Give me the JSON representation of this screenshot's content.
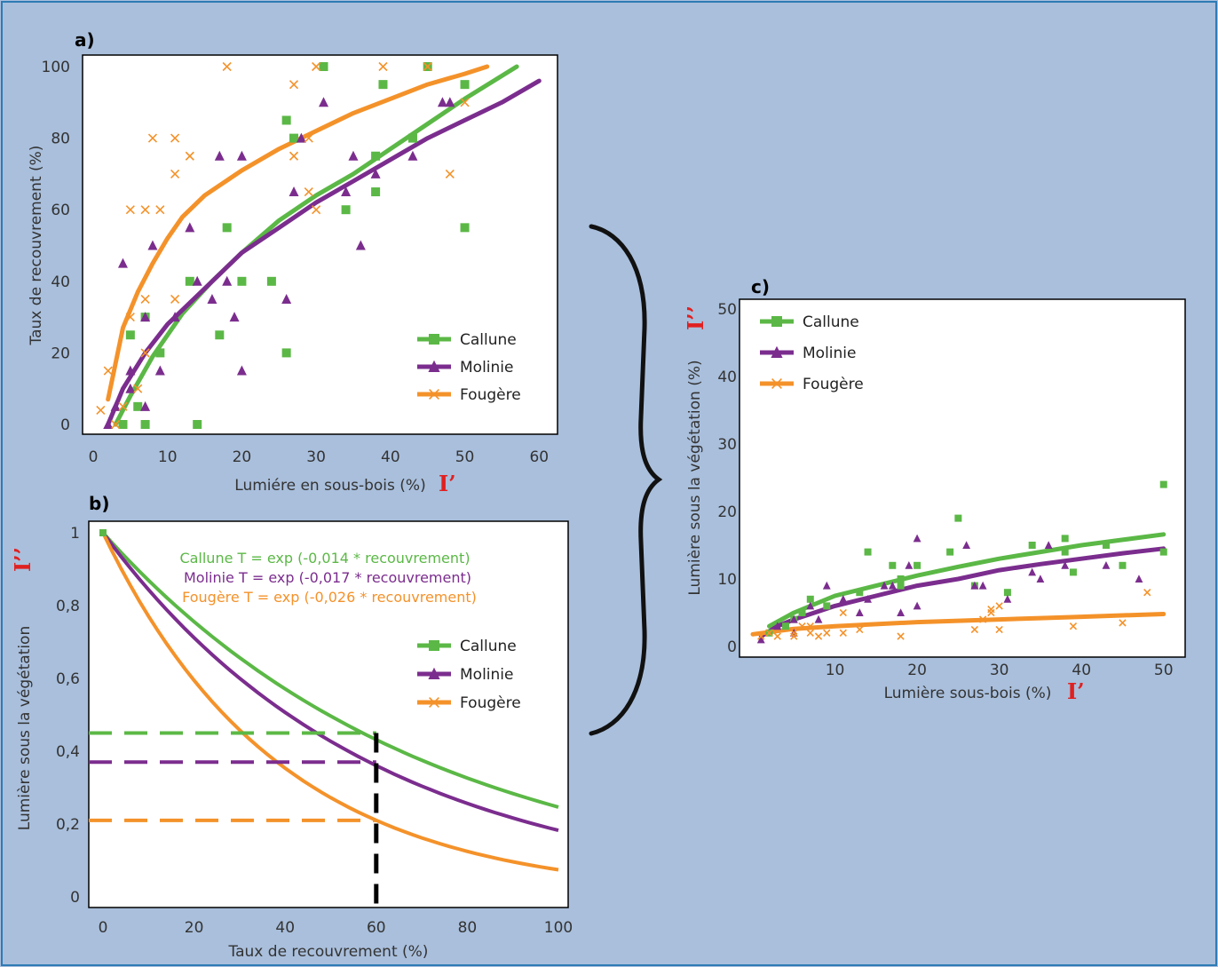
{
  "colors": {
    "callune": "#5bb846",
    "molinie": "#7b2d8e",
    "fougere": "#f4922a",
    "background": "#a9bfdc",
    "red": "#e02020"
  },
  "chart_data": [
    {
      "id": "a",
      "panel_label": "a)",
      "type": "scatter",
      "xlabel": "Lumiére en sous-bois (%)",
      "xlabel_mark": "I’",
      "ylabel": "Taux de recouvrement (%)",
      "xlim": [
        0,
        62
      ],
      "ylim": [
        0,
        100
      ],
      "xticks": [
        0,
        10,
        20,
        30,
        40,
        50,
        60
      ],
      "yticks": [
        0,
        20,
        40,
        60,
        80,
        100
      ],
      "legend_position": "bottom-right",
      "series": [
        {
          "name": "Callune",
          "marker": "square",
          "color": "#5bb846",
          "points": [
            [
              4,
              0
            ],
            [
              5,
              25
            ],
            [
              6,
              5
            ],
            [
              7,
              0
            ],
            [
              7,
              30
            ],
            [
              9,
              20
            ],
            [
              13,
              40
            ],
            [
              14,
              0
            ],
            [
              17,
              25
            ],
            [
              18,
              55
            ],
            [
              20,
              40
            ],
            [
              24,
              40
            ],
            [
              26,
              20
            ],
            [
              26,
              85
            ],
            [
              27,
              80
            ],
            [
              31,
              100
            ],
            [
              34,
              60
            ],
            [
              38,
              65
            ],
            [
              38,
              75
            ],
            [
              39,
              95
            ],
            [
              43,
              80
            ],
            [
              45,
              100
            ],
            [
              50,
              95
            ],
            [
              50,
              55
            ]
          ],
          "fit": [
            [
              3,
              0
            ],
            [
              5,
              8
            ],
            [
              8,
              19
            ],
            [
              12,
              31
            ],
            [
              16,
              40
            ],
            [
              20,
              48
            ],
            [
              25,
              57
            ],
            [
              30,
              64
            ],
            [
              35,
              70
            ],
            [
              40,
              77
            ],
            [
              45,
              84
            ],
            [
              50,
              91
            ],
            [
              57,
              100
            ]
          ]
        },
        {
          "name": "Molinie",
          "marker": "triangle",
          "color": "#7b2d8e",
          "points": [
            [
              2,
              0
            ],
            [
              3,
              5
            ],
            [
              4,
              45
            ],
            [
              5,
              10
            ],
            [
              5,
              15
            ],
            [
              7,
              5
            ],
            [
              7,
              30
            ],
            [
              8,
              50
            ],
            [
              9,
              15
            ],
            [
              11,
              30
            ],
            [
              13,
              55
            ],
            [
              14,
              40
            ],
            [
              16,
              35
            ],
            [
              17,
              75
            ],
            [
              18,
              40
            ],
            [
              19,
              30
            ],
            [
              20,
              75
            ],
            [
              20,
              15
            ],
            [
              26,
              35
            ],
            [
              27,
              65
            ],
            [
              28,
              80
            ],
            [
              31,
              90
            ],
            [
              34,
              65
            ],
            [
              35,
              75
            ],
            [
              36,
              50
            ],
            [
              38,
              70
            ],
            [
              43,
              75
            ],
            [
              47,
              90
            ],
            [
              48,
              90
            ]
          ],
          "fit": [
            [
              2,
              0
            ],
            [
              4,
              10
            ],
            [
              7,
              20
            ],
            [
              10,
              28
            ],
            [
              15,
              38
            ],
            [
              20,
              48
            ],
            [
              25,
              55
            ],
            [
              30,
              62
            ],
            [
              35,
              68
            ],
            [
              40,
              74
            ],
            [
              45,
              80
            ],
            [
              50,
              85
            ],
            [
              55,
              90
            ],
            [
              60,
              96
            ]
          ]
        },
        {
          "name": "Fougère",
          "marker": "x",
          "color": "#f4922a",
          "points": [
            [
              1,
              4
            ],
            [
              2,
              15
            ],
            [
              3,
              0
            ],
            [
              4,
              5
            ],
            [
              5,
              60
            ],
            [
              5,
              30
            ],
            [
              6,
              10
            ],
            [
              7,
              20
            ],
            [
              7,
              35
            ],
            [
              7,
              60
            ],
            [
              8,
              80
            ],
            [
              9,
              60
            ],
            [
              11,
              70
            ],
            [
              11,
              80
            ],
            [
              11,
              35
            ],
            [
              13,
              75
            ],
            [
              18,
              100
            ],
            [
              27,
              95
            ],
            [
              27,
              75
            ],
            [
              29,
              80
            ],
            [
              29,
              65
            ],
            [
              30,
              60
            ],
            [
              30,
              100
            ],
            [
              39,
              100
            ],
            [
              45,
              100
            ],
            [
              48,
              70
            ],
            [
              50,
              90
            ]
          ],
          "fit": [
            [
              2,
              7
            ],
            [
              4,
              27
            ],
            [
              6,
              37
            ],
            [
              8,
              45
            ],
            [
              10,
              52
            ],
            [
              12,
              58
            ],
            [
              15,
              64
            ],
            [
              20,
              71
            ],
            [
              25,
              77
            ],
            [
              30,
              82
            ],
            [
              35,
              87
            ],
            [
              40,
              91
            ],
            [
              45,
              95
            ],
            [
              50,
              98
            ],
            [
              53,
              100
            ]
          ]
        }
      ]
    },
    {
      "id": "b",
      "panel_label": "b)",
      "type": "line",
      "xlabel": "Taux de recouvrement (%)",
      "ylabel": "Lumière sous la végétation",
      "ylabel_mark": "I’’",
      "xlim": [
        0,
        100
      ],
      "ylim": [
        0,
        1
      ],
      "xticks": [
        0,
        20,
        40,
        60,
        80,
        100
      ],
      "yticks": [
        0,
        0.2,
        0.4,
        0.6,
        0.8,
        1
      ],
      "ytick_labels": [
        "0",
        "0,2",
        "0,4",
        "0,6",
        "0,8",
        "1"
      ],
      "legend_position": "right",
      "equations": [
        {
          "text": "Callune T = exp (-0,014 * recouvrement)",
          "color": "#5bb846"
        },
        {
          "text": "Molinie T = exp (-0,017 * recouvrement)",
          "color": "#7b2d8e"
        },
        {
          "text": "Fougère T = exp (-0,026 * recouvrement)",
          "color": "#f4922a"
        }
      ],
      "series": [
        {
          "name": "Callune",
          "marker": "square",
          "color": "#5bb846",
          "k": 0.014,
          "at_60": 0.45
        },
        {
          "name": "Molinie",
          "marker": "triangle",
          "color": "#7b2d8e",
          "k": 0.017,
          "at_60": 0.37
        },
        {
          "name": "Fougère",
          "marker": "x",
          "color": "#f4922a",
          "k": 0.026,
          "at_60": 0.21
        }
      ],
      "reference_x": 60
    },
    {
      "id": "c",
      "panel_label": "c)",
      "type": "scatter",
      "xlabel": "Lumière sous-bois (%)",
      "xlabel_mark": "I’",
      "ylabel": "Lumière sous la végétation (%)",
      "ylabel_mark": "I’’",
      "xlim": [
        0,
        51
      ],
      "ylim": [
        0,
        50
      ],
      "xticks": [
        10,
        20,
        30,
        40,
        50
      ],
      "yticks": [
        0,
        10,
        20,
        30,
        40,
        50
      ],
      "legend_position": "top-left",
      "series": [
        {
          "name": "Callune",
          "marker": "square",
          "color": "#5bb846",
          "points": [
            [
              2,
              2
            ],
            [
              4,
              3
            ],
            [
              5,
              4
            ],
            [
              6,
              5
            ],
            [
              7,
              7
            ],
            [
              9,
              6
            ],
            [
              13,
              8
            ],
            [
              14,
              14
            ],
            [
              17,
              12
            ],
            [
              18,
              10
            ],
            [
              18,
              9
            ],
            [
              20,
              12
            ],
            [
              24,
              14
            ],
            [
              25,
              19
            ],
            [
              27,
              9
            ],
            [
              31,
              8
            ],
            [
              34,
              15
            ],
            [
              38,
              14
            ],
            [
              38,
              16
            ],
            [
              39,
              11
            ],
            [
              43,
              15
            ],
            [
              45,
              12
            ],
            [
              50,
              24
            ],
            [
              50,
              14
            ]
          ],
          "fit": [
            [
              2,
              3
            ],
            [
              5,
              5
            ],
            [
              10,
              7.5
            ],
            [
              15,
              9
            ],
            [
              20,
              10.5
            ],
            [
              25,
              11.8
            ],
            [
              30,
              13
            ],
            [
              35,
              14
            ],
            [
              40,
              15
            ],
            [
              45,
              15.8
            ],
            [
              50,
              16.6
            ]
          ]
        },
        {
          "name": "Molinie",
          "marker": "triangle",
          "color": "#7b2d8e",
          "points": [
            [
              1,
              1
            ],
            [
              3,
              3
            ],
            [
              5,
              2
            ],
            [
              5,
              4
            ],
            [
              7,
              6
            ],
            [
              8,
              4
            ],
            [
              9,
              9
            ],
            [
              11,
              7
            ],
            [
              13,
              5
            ],
            [
              14,
              7
            ],
            [
              16,
              9
            ],
            [
              17,
              9
            ],
            [
              18,
              5
            ],
            [
              19,
              12
            ],
            [
              20,
              6
            ],
            [
              20,
              16
            ],
            [
              26,
              15
            ],
            [
              27,
              9
            ],
            [
              28,
              9
            ],
            [
              31,
              7
            ],
            [
              34,
              11
            ],
            [
              35,
              10
            ],
            [
              36,
              15
            ],
            [
              38,
              12
            ],
            [
              43,
              12
            ],
            [
              47,
              10
            ]
          ],
          "fit": [
            [
              1,
              1.5
            ],
            [
              3,
              3
            ],
            [
              5,
              4
            ],
            [
              10,
              6
            ],
            [
              15,
              7.5
            ],
            [
              20,
              9
            ],
            [
              25,
              10
            ],
            [
              30,
              11.3
            ],
            [
              35,
              12.2
            ],
            [
              40,
              13
            ],
            [
              45,
              13.8
            ],
            [
              50,
              14.5
            ]
          ]
        },
        {
          "name": "Fougère",
          "marker": "x",
          "color": "#f4922a",
          "points": [
            [
              1,
              1.5
            ],
            [
              2,
              2
            ],
            [
              3,
              1.5
            ],
            [
              5,
              2
            ],
            [
              5,
              1.5
            ],
            [
              6,
              3
            ],
            [
              7,
              2
            ],
            [
              7,
              3
            ],
            [
              8,
              1.5
            ],
            [
              9,
              2
            ],
            [
              11,
              2
            ],
            [
              11,
              5
            ],
            [
              13,
              2.5
            ],
            [
              18,
              1.5
            ],
            [
              27,
              2.5
            ],
            [
              28,
              4
            ],
            [
              29,
              5
            ],
            [
              29,
              5.5
            ],
            [
              30,
              6
            ],
            [
              30,
              2.5
            ],
            [
              39,
              3
            ],
            [
              45,
              3.5
            ],
            [
              48,
              8
            ]
          ],
          "fit": [
            [
              0,
              1.8
            ],
            [
              5,
              2.6
            ],
            [
              10,
              3
            ],
            [
              15,
              3.3
            ],
            [
              20,
              3.6
            ],
            [
              25,
              3.8
            ],
            [
              30,
              4
            ],
            [
              35,
              4.2
            ],
            [
              40,
              4.4
            ],
            [
              45,
              4.6
            ],
            [
              50,
              4.8
            ]
          ]
        }
      ]
    }
  ]
}
